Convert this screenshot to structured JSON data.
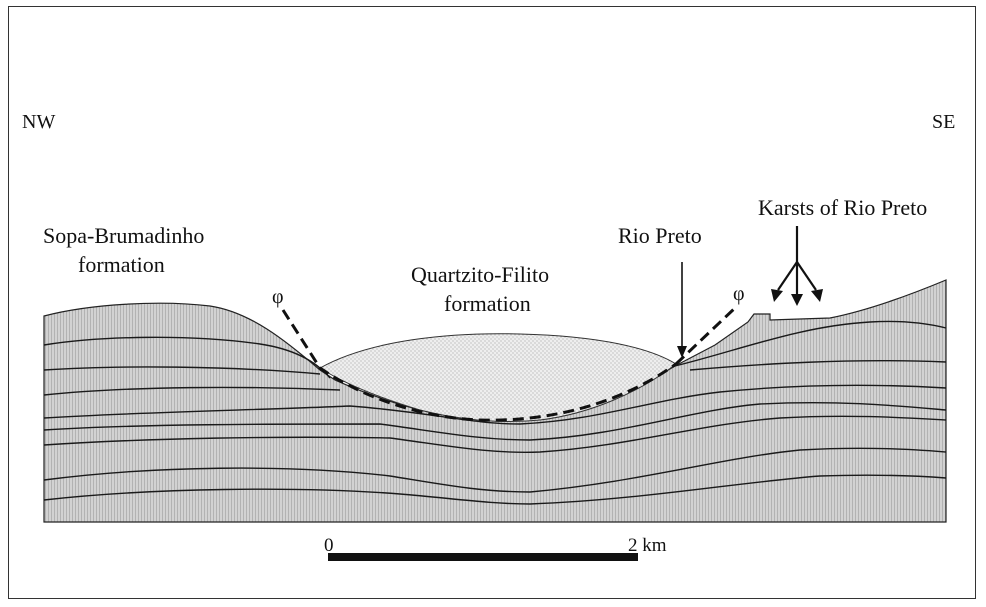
{
  "orientation": {
    "left": "NW",
    "right": "SE"
  },
  "labels": {
    "left_formation_line1": "Sopa-Brumadinho",
    "left_formation_line2": "formation",
    "center_formation_line1": "Quartzito-Filito",
    "center_formation_line2": "formation",
    "river": "Rio Preto",
    "karsts": "Karsts of Rio Preto",
    "fault_symbol": "φ"
  },
  "scale_bar": {
    "start_label": "0",
    "end_label": "2 km"
  },
  "colors": {
    "basement_fill": "#d0d0d0",
    "basement_stripe": "#b4b4b4",
    "quartzite_fill": "#ececec",
    "line": "#111111"
  }
}
